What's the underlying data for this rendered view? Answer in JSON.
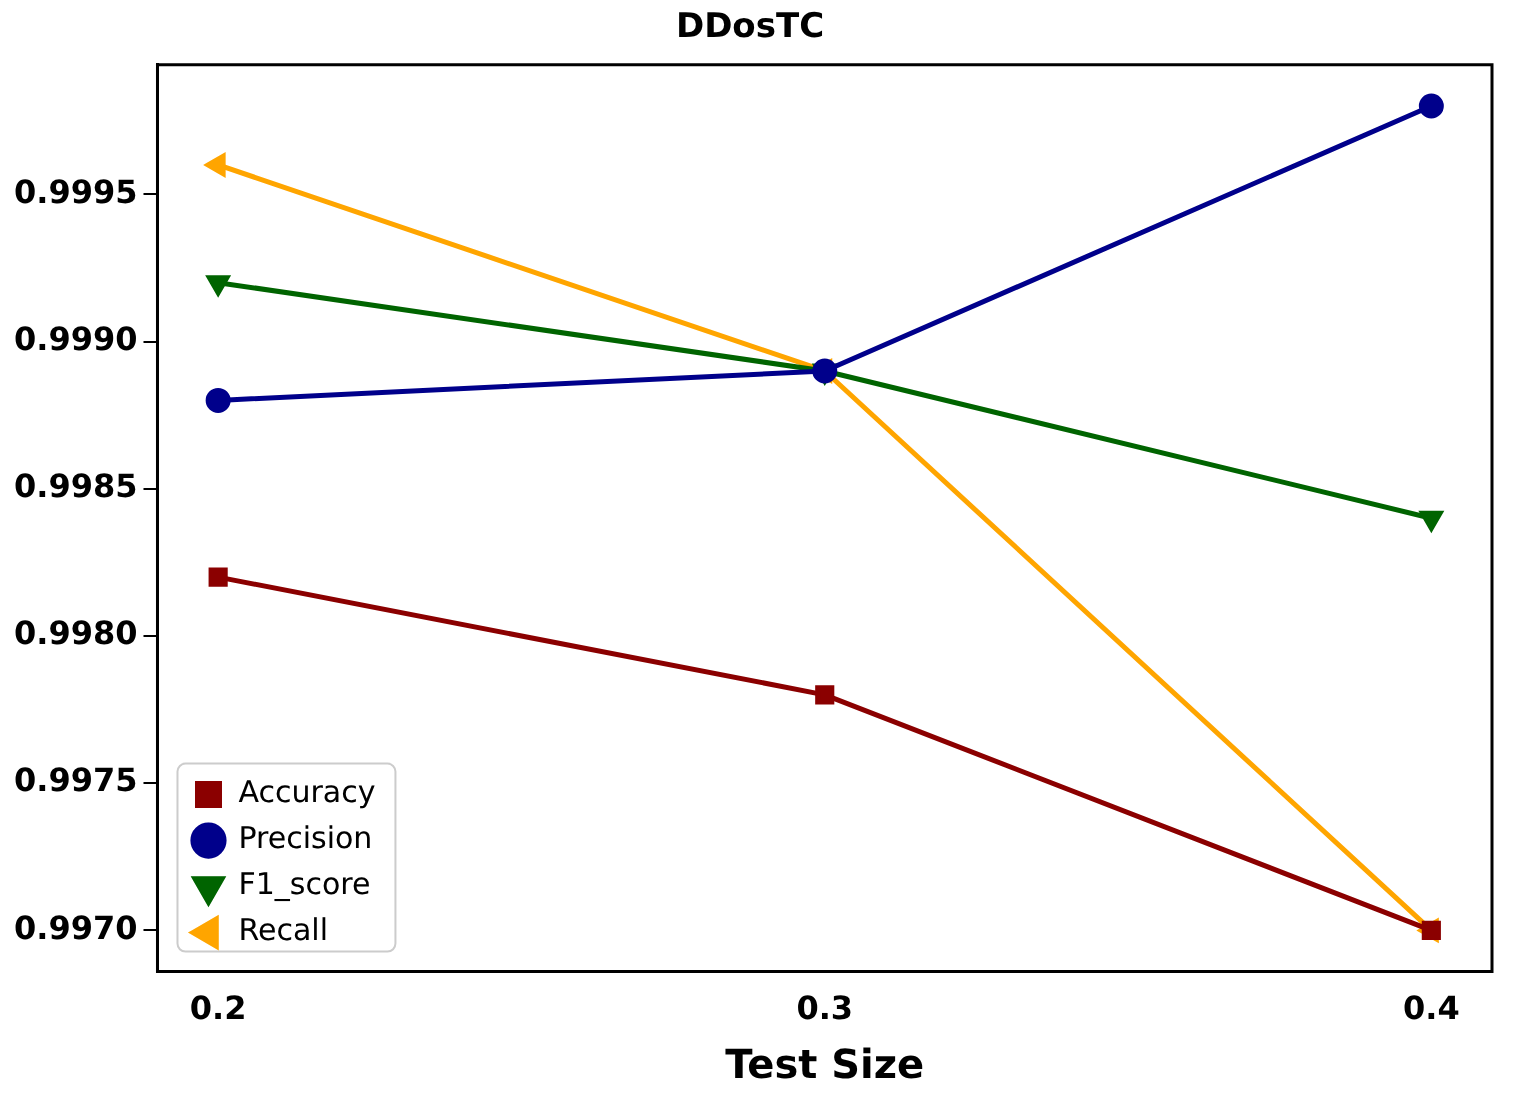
{
  "chart_data": {
    "type": "line",
    "title": "DDosTC",
    "xlabel": "Test Size",
    "x": [
      0.2,
      0.3,
      0.4
    ],
    "xlim": [
      0.19,
      0.41
    ],
    "xticks": [
      0.2,
      0.3,
      0.4
    ],
    "ylim": [
      0.99686,
      0.99994
    ],
    "yticks": [
      {
        "value": 0.997,
        "label": "0.9970"
      },
      0.9975,
      {
        "value": 0.998,
        "label": "0.9980"
      },
      0.9985,
      {
        "value": 0.999,
        "label": "0.9990"
      },
      0.9995
    ],
    "grid": false,
    "legend": "bottom left",
    "line_style": "solid",
    "series": [
      {
        "name": "Accuracy",
        "color": "#8b0000",
        "marker": "square",
        "values": [
          0.9982,
          0.9978,
          0.997
        ]
      },
      {
        "name": "Precision",
        "color": "#00008b",
        "marker": "circle",
        "values": [
          0.9988,
          0.9989,
          0.9998
        ]
      },
      {
        "name": "F1_score",
        "color": "#006400",
        "marker": "triangle-down",
        "values": [
          0.9992,
          0.9989,
          0.9984
        ]
      },
      {
        "name": "Recall",
        "color": "#ffa500",
        "marker": "triangle-left",
        "values": [
          0.9996,
          0.9989,
          0.997
        ]
      }
    ]
  }
}
